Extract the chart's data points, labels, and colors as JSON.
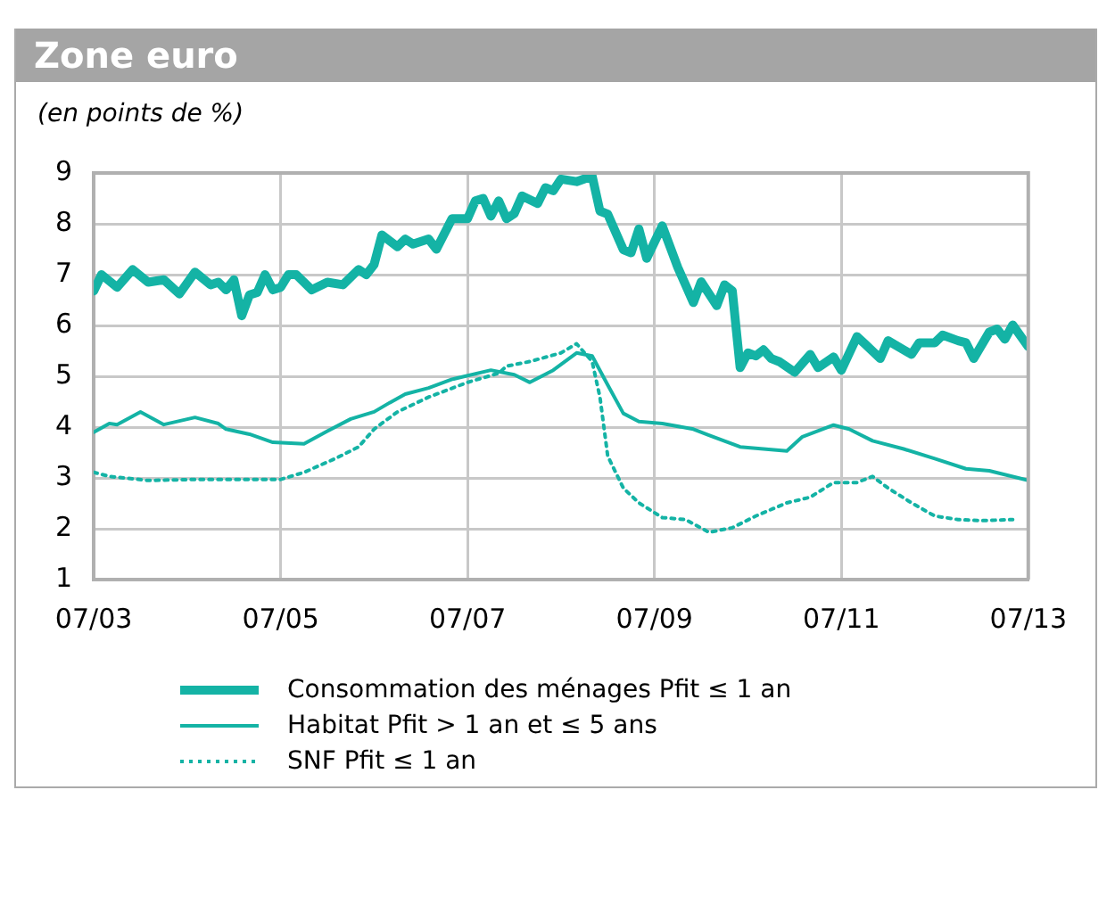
{
  "chart_data": {
    "type": "line",
    "title": "Zone euro",
    "subtitle": "(en points de %)",
    "xlim": [
      "2003-07",
      "2013-07"
    ],
    "xticks": [
      {
        "value": "2003-07",
        "label": "07/03"
      },
      {
        "value": "2005-07",
        "label": "07/05"
      },
      {
        "value": "2007-07",
        "label": "07/07"
      },
      {
        "value": "2009-07",
        "label": "07/09"
      },
      {
        "value": "2011-07",
        "label": "07/11"
      },
      {
        "value": "2013-07",
        "label": "07/13"
      }
    ],
    "ylim": [
      1,
      9
    ],
    "yticks": [
      1,
      2,
      3,
      4,
      5,
      6,
      7,
      8,
      9
    ],
    "grid": true,
    "legend": "bottom",
    "marker": "none",
    "series": [
      {
        "name": "Consommation des ménages Pfit ≤ 1 an",
        "color": "#14b3a5",
        "line_style": "solid",
        "x": [
          "2003-07",
          "2003-08",
          "2003-10",
          "2003-12",
          "2004-02",
          "2004-04",
          "2004-06",
          "2004-08",
          "2004-10",
          "2004-11",
          "2004-12",
          "2005-01",
          "2005-02",
          "2005-03",
          "2005-04",
          "2005-05",
          "2005-06",
          "2005-07",
          "2005-08",
          "2005-09",
          "2005-11",
          "2006-01",
          "2006-03",
          "2006-05",
          "2006-06",
          "2006-07",
          "2006-08",
          "2006-10",
          "2006-11",
          "2006-12",
          "2007-02",
          "2007-03",
          "2007-05",
          "2007-07",
          "2007-08",
          "2007-09",
          "2007-10",
          "2007-11",
          "2007-12",
          "2008-01",
          "2008-02",
          "2008-04",
          "2008-05",
          "2008-06",
          "2008-07",
          "2008-09",
          "2008-11",
          "2008-12",
          "2009-01",
          "2009-03",
          "2009-04",
          "2009-05",
          "2009-06",
          "2009-08",
          "2009-10",
          "2009-12",
          "2010-01",
          "2010-03",
          "2010-04",
          "2010-05",
          "2010-06",
          "2010-07",
          "2010-08",
          "2010-09",
          "2010-10",
          "2010-11",
          "2011-01",
          "2011-03",
          "2011-04",
          "2011-06",
          "2011-07",
          "2011-09",
          "2011-10",
          "2011-12",
          "2012-01",
          "2012-04",
          "2012-05",
          "2012-07",
          "2012-08",
          "2012-10",
          "2012-11",
          "2012-12",
          "2013-02",
          "2013-03",
          "2013-04",
          "2013-05",
          "2013-07"
        ],
        "values": [
          6.68,
          7.0,
          6.75,
          7.1,
          6.85,
          6.9,
          6.62,
          7.05,
          6.8,
          6.85,
          6.7,
          6.9,
          6.19,
          6.6,
          6.65,
          7.0,
          6.7,
          6.75,
          7.0,
          7.0,
          6.7,
          6.85,
          6.8,
          7.1,
          7.0,
          7.2,
          7.78,
          7.55,
          7.7,
          7.6,
          7.7,
          7.5,
          8.1,
          8.1,
          8.45,
          8.5,
          8.15,
          8.45,
          8.1,
          8.2,
          8.55,
          8.4,
          8.71,
          8.65,
          8.88,
          8.83,
          8.94,
          8.25,
          8.19,
          7.49,
          7.43,
          7.9,
          7.32,
          7.96,
          7.14,
          6.45,
          6.86,
          6.39,
          6.8,
          6.68,
          5.17,
          5.46,
          5.4,
          5.52,
          5.35,
          5.29,
          5.08,
          5.43,
          5.17,
          5.38,
          5.12,
          5.78,
          5.64,
          5.35,
          5.7,
          5.43,
          5.66,
          5.66,
          5.81,
          5.7,
          5.66,
          5.35,
          5.87,
          5.93,
          5.73,
          6.01,
          5.58
        ]
      },
      {
        "name": "Habitat Pfit > 1 an et ≤ 5 ans",
        "color": "#14b3a5",
        "line_style": "solid",
        "x": [
          "2003-07",
          "2003-09",
          "2003-10",
          "2004-01",
          "2004-04",
          "2004-08",
          "2004-11",
          "2004-12",
          "2005-03",
          "2005-06",
          "2005-10",
          "2006-01",
          "2006-04",
          "2006-07",
          "2006-09",
          "2006-11",
          "2007-02",
          "2007-05",
          "2007-10",
          "2008-01",
          "2008-03",
          "2008-06",
          "2008-09",
          "2008-11",
          "2009-01",
          "2009-03",
          "2009-05",
          "2009-08",
          "2009-12",
          "2010-02",
          "2010-06",
          "2010-09",
          "2010-12",
          "2011-02",
          "2011-06",
          "2011-08",
          "2011-11",
          "2012-03",
          "2012-07",
          "2012-11",
          "2013-02",
          "2013-07"
        ],
        "values": [
          3.9,
          4.07,
          4.05,
          4.3,
          4.05,
          4.19,
          4.07,
          3.96,
          3.86,
          3.7,
          3.67,
          3.92,
          4.16,
          4.3,
          4.48,
          4.65,
          4.77,
          4.94,
          5.12,
          5.03,
          4.88,
          5.12,
          5.46,
          5.4,
          4.83,
          4.27,
          4.11,
          4.07,
          3.96,
          3.84,
          3.61,
          3.57,
          3.53,
          3.81,
          4.04,
          3.96,
          3.73,
          3.57,
          3.38,
          3.18,
          3.14,
          2.95
        ]
      },
      {
        "name": "SNF Pfit ≤ 1 an",
        "color": "#14b3a5",
        "line_style": "dotted",
        "x": [
          "2003-07",
          "2003-09",
          "2004-02",
          "2004-08",
          "2005-07",
          "2005-10",
          "2006-02",
          "2006-05",
          "2006-07",
          "2006-10",
          "2007-02",
          "2007-07",
          "2007-11",
          "2007-12",
          "2008-03",
          "2008-07",
          "2008-09",
          "2008-11",
          "2008-12",
          "2009-01",
          "2009-03",
          "2009-05",
          "2009-08",
          "2009-11",
          "2010-02",
          "2010-05",
          "2010-08",
          "2010-12",
          "2011-03",
          "2011-06",
          "2011-09",
          "2011-11",
          "2012-01",
          "2012-04",
          "2012-07",
          "2012-10",
          "2013-01",
          "2013-05"
        ],
        "values": [
          3.11,
          3.03,
          2.95,
          2.97,
          2.97,
          3.11,
          3.38,
          3.61,
          3.96,
          4.3,
          4.59,
          4.88,
          5.06,
          5.2,
          5.29,
          5.46,
          5.64,
          5.29,
          4.59,
          3.43,
          2.8,
          2.51,
          2.22,
          2.18,
          1.93,
          2.02,
          2.25,
          2.51,
          2.62,
          2.91,
          2.91,
          3.03,
          2.8,
          2.51,
          2.25,
          2.18,
          2.16,
          2.18
        ]
      }
    ]
  }
}
